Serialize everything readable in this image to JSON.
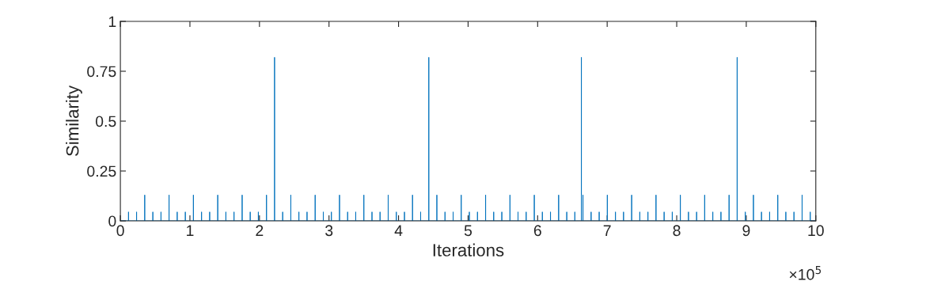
{
  "chart_data": {
    "type": "line",
    "xlabel": "Iterations",
    "ylabel": "Similarity",
    "annotations": [
      "×10$^{5}$"
    ],
    "xlim": [
      0,
      10
    ],
    "xticks": [
      0,
      1,
      2,
      3,
      4,
      5,
      6,
      7,
      8,
      9,
      10
    ],
    "ylim": [
      0,
      1
    ],
    "yticks": [
      0,
      0.25,
      0.5,
      0.75,
      1
    ],
    "grid": false,
    "marker": "none",
    "line_style": "solid",
    "series": [
      {
        "color": "#0072bd",
        "x": [
          0,
          0.117,
          0.117,
          0.117,
          0.233,
          0.233,
          0.233,
          0.35,
          0.35,
          0.35,
          0.467,
          0.467,
          0.467,
          0.584,
          0.584,
          0.584,
          0.7,
          0.7,
          0.7,
          0.817,
          0.817,
          0.817,
          0.934,
          0.934,
          0.934,
          1.05,
          1.05,
          1.05,
          1.167,
          1.167,
          1.167,
          1.284,
          1.284,
          1.284,
          1.4,
          1.4,
          1.4,
          1.517,
          1.517,
          1.517,
          1.634,
          1.634,
          1.634,
          1.751,
          1.751,
          1.751,
          1.867,
          1.867,
          1.867,
          1.984,
          1.984,
          1.984,
          2.101,
          2.101,
          2.101,
          2.217,
          2.217,
          2.217,
          2.334,
          2.334,
          2.334,
          2.451,
          2.451,
          2.451,
          2.567,
          2.567,
          2.567,
          2.684,
          2.684,
          2.684,
          2.801,
          2.801,
          2.801,
          2.918,
          2.918,
          2.918,
          3.034,
          3.034,
          3.034,
          3.151,
          3.151,
          3.151,
          3.268,
          3.268,
          3.268,
          3.384,
          3.384,
          3.384,
          3.501,
          3.501,
          3.501,
          3.618,
          3.618,
          3.618,
          3.734,
          3.734,
          3.734,
          3.851,
          3.851,
          3.851,
          3.968,
          3.968,
          3.968,
          4.085,
          4.085,
          4.085,
          4.201,
          4.201,
          4.201,
          4.318,
          4.318,
          4.318,
          4.435,
          4.435,
          4.435,
          4.551,
          4.551,
          4.551,
          4.668,
          4.668,
          4.668,
          4.785,
          4.785,
          4.785,
          4.901,
          4.901,
          4.901,
          5.018,
          5.018,
          5.018,
          5.135,
          5.135,
          5.135,
          5.252,
          5.252,
          5.252,
          5.368,
          5.368,
          5.368,
          5.485,
          5.485,
          5.485,
          5.602,
          5.602,
          5.602,
          5.718,
          5.718,
          5.718,
          5.835,
          5.835,
          5.835,
          5.952,
          5.952,
          5.952,
          6.068,
          6.068,
          6.068,
          6.185,
          6.185,
          6.185,
          6.302,
          6.302,
          6.302,
          6.419,
          6.419,
          6.419,
          6.535,
          6.535,
          6.535,
          6.629,
          6.629,
          6.629,
          6.652,
          6.652,
          6.652,
          6.769,
          6.769,
          6.769,
          6.885,
          6.885,
          6.885,
          7.002,
          7.002,
          7.002,
          7.119,
          7.119,
          7.119,
          7.235,
          7.235,
          7.235,
          7.352,
          7.352,
          7.352,
          7.469,
          7.469,
          7.469,
          7.586,
          7.586,
          7.586,
          7.702,
          7.702,
          7.702,
          7.819,
          7.819,
          7.819,
          7.936,
          7.936,
          7.936,
          8.052,
          8.052,
          8.052,
          8.169,
          8.169,
          8.169,
          8.286,
          8.286,
          8.286,
          8.402,
          8.402,
          8.402,
          8.519,
          8.519,
          8.519,
          8.636,
          8.636,
          8.636,
          8.753,
          8.753,
          8.753,
          8.869,
          8.869,
          8.869,
          8.986,
          8.986,
          8.986,
          9.103,
          9.103,
          9.103,
          9.219,
          9.219,
          9.219,
          9.336,
          9.336,
          9.336,
          9.453,
          9.453,
          9.453,
          9.569,
          9.569,
          9.569,
          9.686,
          9.686,
          9.686,
          9.803,
          9.803,
          9.803,
          9.92,
          9.92,
          9.92,
          10
        ],
        "values": [
          0,
          0,
          0.045,
          0,
          0,
          0.045,
          0,
          0,
          0.13,
          0,
          0,
          0.045,
          0,
          0,
          0.045,
          0,
          0,
          0.13,
          0,
          0,
          0.045,
          0,
          0,
          0.045,
          0,
          0,
          0.13,
          0,
          0,
          0.045,
          0,
          0,
          0.045,
          0,
          0,
          0.13,
          0,
          0,
          0.045,
          0,
          0,
          0.045,
          0,
          0,
          0.13,
          0,
          0,
          0.045,
          0,
          0,
          0.045,
          0,
          0,
          0.13,
          0,
          0,
          0.82,
          0,
          0,
          0.045,
          0,
          0,
          0.13,
          0,
          0,
          0.045,
          0,
          0,
          0.045,
          0,
          0,
          0.13,
          0,
          0,
          0.045,
          0,
          0,
          0.045,
          0,
          0,
          0.13,
          0,
          0,
          0.045,
          0,
          0,
          0.045,
          0,
          0,
          0.13,
          0,
          0,
          0.045,
          0,
          0,
          0.045,
          0,
          0,
          0.13,
          0,
          0,
          0.045,
          0,
          0,
          0.045,
          0,
          0,
          0.13,
          0,
          0,
          0.045,
          0,
          0,
          0.82,
          0,
          0,
          0.13,
          0,
          0,
          0.045,
          0,
          0,
          0.045,
          0,
          0,
          0.13,
          0,
          0,
          0.045,
          0,
          0,
          0.045,
          0,
          0,
          0.13,
          0,
          0,
          0.045,
          0,
          0,
          0.045,
          0,
          0,
          0.13,
          0,
          0,
          0.045,
          0,
          0,
          0.045,
          0,
          0,
          0.13,
          0,
          0,
          0.045,
          0,
          0,
          0.045,
          0,
          0,
          0.13,
          0,
          0,
          0.045,
          0,
          0,
          0.045,
          0,
          0,
          0.82,
          0,
          0,
          0.13,
          0,
          0,
          0.045,
          0,
          0,
          0.045,
          0,
          0,
          0.13,
          0,
          0,
          0.045,
          0,
          0,
          0.045,
          0,
          0,
          0.13,
          0,
          0,
          0.045,
          0,
          0,
          0.045,
          0,
          0,
          0.13,
          0,
          0,
          0.045,
          0,
          0,
          0.045,
          0,
          0,
          0.13,
          0,
          0,
          0.045,
          0,
          0,
          0.045,
          0,
          0,
          0.13,
          0,
          0,
          0.045,
          0,
          0,
          0.045,
          0,
          0,
          0.13,
          0,
          0,
          0.82,
          0,
          0,
          0.045,
          0,
          0,
          0.13,
          0,
          0,
          0.045,
          0,
          0,
          0.045,
          0,
          0,
          0.13,
          0,
          0,
          0.045,
          0,
          0,
          0.045,
          0,
          0,
          0.13,
          0,
          0,
          0.045,
          0,
          0
        ]
      }
    ]
  }
}
